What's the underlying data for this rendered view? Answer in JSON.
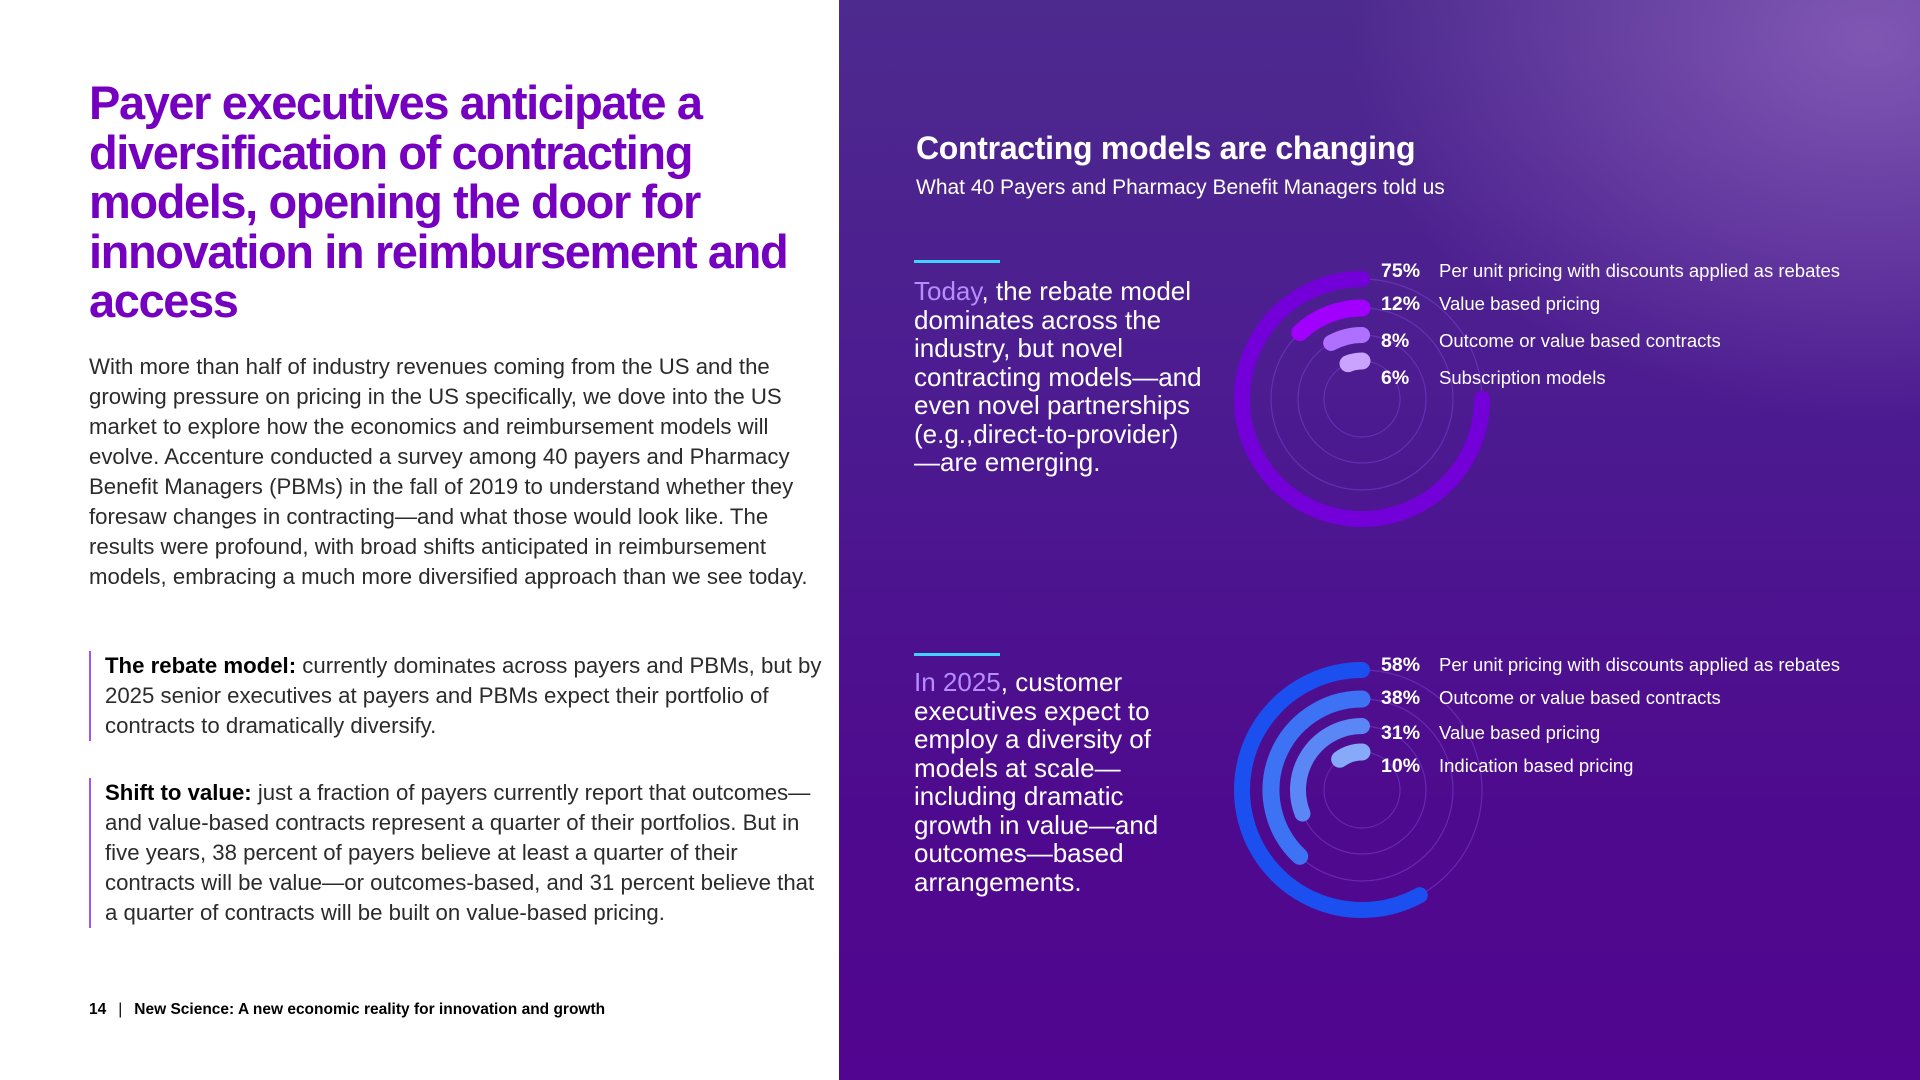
{
  "headline": "Payer executives anticipate a diversification of contracting models, opening the door for innovation in reimbursement and access",
  "intro": "With more than half of industry revenues coming from the US and the growing pressure on pricing in the US specifically, we dove into the US market to explore how the economics and reimbursement models will evolve. Accenture conducted a survey among 40 payers and Pharmacy Benefit Managers (PBMs) in the fall of 2019 to understand whether they foresaw changes in contracting—and what those would look like. The results were profound, with broad shifts anticipated in reimbursement models, embracing a much more diversified approach than we see today.",
  "callouts": [
    {
      "title": "The rebate model:",
      "text": " currently dominates across payers and PBMs, but by 2025 senior executives at payers and PBMs expect their portfolio of contracts to dramatically diversify."
    },
    {
      "title": "Shift to value:",
      "text": " just a fraction of payers currently report that outcomes—and value-based contracts represent a quarter of their portfolios. But in five years, 38 percent of payers believe at least a quarter of their contracts will be value—or outcomes-based, and 31 percent believe that a quarter of contracts will be built on value-based pricing."
    }
  ],
  "footer": {
    "page_number": "14",
    "separator": "|",
    "publication": "New Science: A new economic reality for innovation and growth"
  },
  "panel": {
    "title": "Contracting models are changing",
    "subtitle": "What 40 Payers and Pharmacy Benefit Managers told us"
  },
  "colors": {
    "headline": "#7500c0",
    "accent_line": "#3fd2ff",
    "lead_text": "#b68cff",
    "guide_ring": "#7d3fd0"
  },
  "chart_data": [
    {
      "type": "radial_bar",
      "name": "today",
      "description_lead": "Today",
      "description_rest": ", the rebate model dominates across the industry, but novel contracting models—and even novel partnerships (e.g.,direct-to-provider)—are emerging.",
      "series": [
        {
          "label": "Per unit pricing with discounts applied as rebates",
          "value": 75,
          "display": "75%",
          "color": "#7300d9"
        },
        {
          "label": "Value based pricing",
          "value": 12,
          "display": "12%",
          "color": "#a100ff"
        },
        {
          "label": "Outcome or value based contracts",
          "value": 8,
          "display": "8%",
          "color": "#b070ff"
        },
        {
          "label": "Subscription models",
          "value": 6,
          "display": "6%",
          "color": "#c9a3ff"
        }
      ]
    },
    {
      "type": "radial_bar",
      "name": "2025",
      "description_lead": "In 2025",
      "description_rest": ", customer executives expect to employ a diversity of models at scale—including dramatic growth in value—and outcomes—based arrangements.",
      "series": [
        {
          "label": "Per unit pricing with discounts applied as rebates",
          "value": 58,
          "display": "58%",
          "color": "#1b4ff0"
        },
        {
          "label": "Outcome or value based contracts",
          "value": 38,
          "display": "38%",
          "color": "#3d72f5"
        },
        {
          "label": "Value based pricing",
          "value": 31,
          "display": "31%",
          "color": "#5b86f5"
        },
        {
          "label": "Indication based pricing",
          "value": 10,
          "display": "10%",
          "color": "#86aaf8"
        }
      ]
    }
  ]
}
